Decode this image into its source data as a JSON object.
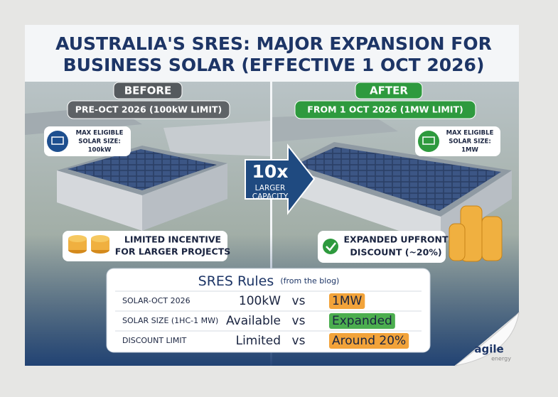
{
  "title_lines": [
    "AUSTRALIA'S SRES: MAJOR EXPANSION FOR",
    "BUSINESS SOLAR (EFFECTIVE 1 OCT 2026)"
  ],
  "before": {
    "label": "BEFORE",
    "period": "PRE-OCT 2026 (100kW LIMIT)",
    "badge_lines": [
      "MAX ELIGIBLE",
      "SOLAR SIZE:",
      "100kW"
    ],
    "note_lines": [
      "LIMITED INCENTIVE",
      "FOR LARGER PROJECTS"
    ]
  },
  "arrow": {
    "headline": "10x",
    "lines": [
      "LARGER",
      "CAPACITY"
    ]
  },
  "after": {
    "label": "AFTER",
    "period": "FROM 1 OCT 2026 (1MW LIMIT)",
    "badge_lines": [
      "MAX ELIGIBLE",
      "SOLAR SIZE:",
      "1MW"
    ],
    "note_lines": [
      "EXPANDED UPFRONT",
      "DISCOUNT (~20%)"
    ]
  },
  "table": {
    "title": "SRES Rules",
    "subtitle": "(from the blog)",
    "rows": [
      {
        "label": "SOLAR-OCT 2026",
        "value": "100kW",
        "vs": "vs",
        "compare": "1MW",
        "compare_color": "#f2a33a"
      },
      {
        "label": "SOLAR SIZE (1HC-1 MW)",
        "value": "Available",
        "vs": "vs",
        "compare": "Expanded",
        "compare_color": "#4cae4f"
      },
      {
        "label": "DISCOUNT LIMIT",
        "value": "Limited",
        "vs": "vs",
        "compare": "Around 20%",
        "compare_color": "#f2a33a"
      }
    ]
  },
  "logo": {
    "name": "agile",
    "tagline": "energy"
  }
}
